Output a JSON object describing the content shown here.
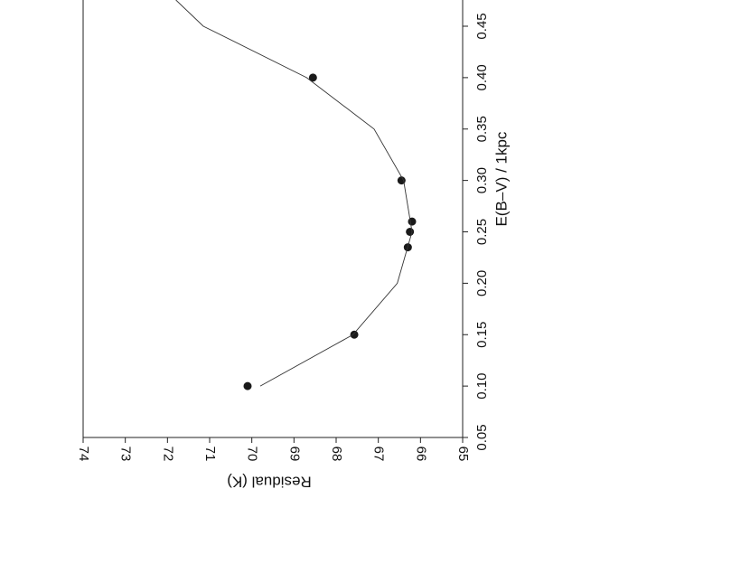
{
  "chart_data": {
    "type": "scatter",
    "x_label": "E(B–V) / 1kpc",
    "y_label": "Residual (K)",
    "xlim": [
      0.05,
      0.4755
    ],
    "xticks": [
      0.05,
      {
        "value": 0.1,
        "label": "0.10"
      },
      0.15,
      {
        "value": 0.2,
        "label": "0.20"
      },
      0.25,
      {
        "value": 0.3,
        "label": "0.30"
      },
      0.35,
      {
        "value": 0.4,
        "label": "0.40"
      },
      0.45
    ],
    "ylim": [
      65,
      74
    ],
    "yticks": [
      74,
      73,
      72,
      71,
      70,
      69,
      68,
      67,
      66,
      65
    ],
    "series": [
      {
        "color": "#1a1a1a",
        "x": [
          0.1,
          0.15,
          0.235,
          0.25,
          0.26,
          0.3,
          0.4
        ],
        "values": [
          70.1,
          67.57,
          66.3,
          66.25,
          66.2,
          66.45,
          68.55
        ]
      },
      {
        "color": "#333333",
        "line": true,
        "x": [
          0.1,
          0.15,
          0.2,
          0.25,
          0.3,
          0.35,
          0.4,
          0.45,
          0.4755
        ],
        "values": [
          69.8,
          67.6,
          66.55,
          66.2,
          66.4,
          67.1,
          68.7,
          71.15,
          71.8
        ]
      }
    ]
  }
}
